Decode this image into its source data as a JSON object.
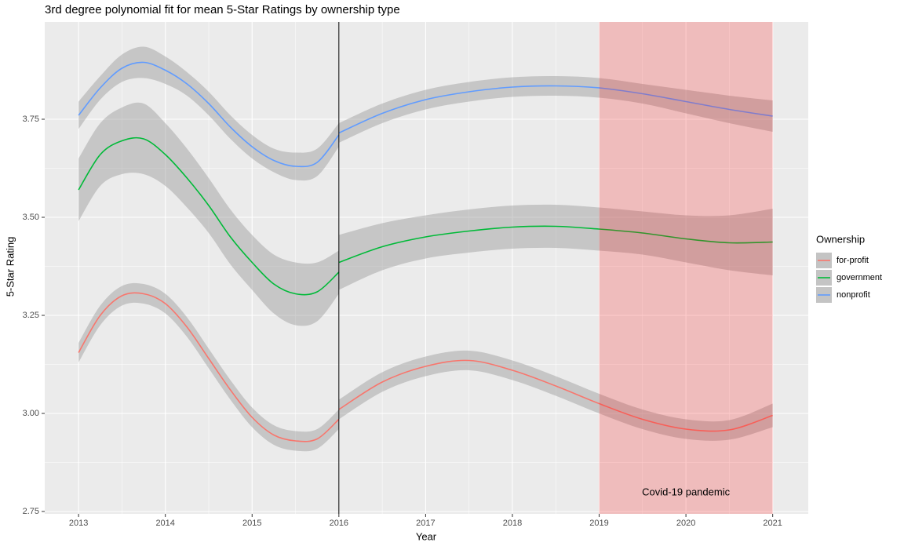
{
  "chart_data": {
    "type": "line",
    "title": "3rd degree polynomial fit for mean 5-Star Ratings by ownership type",
    "x_label": "Year",
    "y_label": "5-Star Rating",
    "legend_title": "Ownership",
    "legend": "right",
    "x": [
      2013,
      2013.25,
      2013.5,
      2013.75,
      2014,
      2014.25,
      2014.5,
      2014.75,
      2015,
      2015.25,
      2015.5,
      2015.75,
      2016,
      null,
      2016,
      2016.5,
      2017,
      2017.5,
      2018,
      2018.5,
      2019,
      2019.5,
      2020,
      2020.5,
      2021
    ],
    "series": [
      {
        "name": "for-profit",
        "color": "#F8766D",
        "values": [
          3.155,
          3.25,
          3.3,
          3.305,
          3.28,
          3.22,
          3.14,
          3.06,
          2.99,
          2.945,
          2.93,
          2.935,
          2.985,
          null,
          3.01,
          3.08,
          3.12,
          3.135,
          3.11,
          3.07,
          3.025,
          2.985,
          2.96,
          2.958,
          2.995
        ],
        "lower": [
          3.13,
          3.225,
          3.275,
          3.28,
          3.255,
          3.195,
          3.115,
          3.035,
          2.965,
          2.92,
          2.905,
          2.91,
          2.96,
          null,
          2.985,
          3.055,
          3.095,
          3.11,
          3.085,
          3.045,
          3.0,
          2.96,
          2.935,
          2.933,
          2.965
        ],
        "upper": [
          3.18,
          3.275,
          3.325,
          3.33,
          3.305,
          3.245,
          3.165,
          3.085,
          3.015,
          2.97,
          2.955,
          2.96,
          3.01,
          null,
          3.035,
          3.105,
          3.145,
          3.16,
          3.135,
          3.095,
          3.05,
          3.01,
          2.985,
          2.983,
          3.025
        ]
      },
      {
        "name": "government",
        "color": "#00BA38",
        "values": [
          3.57,
          3.66,
          3.695,
          3.7,
          3.66,
          3.6,
          3.53,
          3.45,
          3.385,
          3.33,
          3.305,
          3.31,
          3.36,
          null,
          3.385,
          3.425,
          3.45,
          3.465,
          3.475,
          3.477,
          3.47,
          3.46,
          3.445,
          3.435,
          3.437
        ],
        "lower": [
          3.49,
          3.58,
          3.61,
          3.61,
          3.58,
          3.525,
          3.46,
          3.38,
          3.315,
          3.255,
          3.225,
          3.235,
          3.305,
          null,
          3.315,
          3.365,
          3.395,
          3.41,
          3.42,
          3.422,
          3.415,
          3.405,
          3.385,
          3.365,
          3.352
        ],
        "upper": [
          3.65,
          3.74,
          3.78,
          3.79,
          3.74,
          3.675,
          3.6,
          3.52,
          3.455,
          3.405,
          3.385,
          3.385,
          3.415,
          null,
          3.455,
          3.485,
          3.505,
          3.52,
          3.53,
          3.532,
          3.525,
          3.515,
          3.505,
          3.505,
          3.522
        ]
      },
      {
        "name": "nonprofit",
        "color": "#619CFF",
        "values": [
          3.76,
          3.83,
          3.88,
          3.895,
          3.875,
          3.84,
          3.79,
          3.73,
          3.68,
          3.645,
          3.63,
          3.64,
          3.71,
          null,
          3.715,
          3.765,
          3.8,
          3.82,
          3.832,
          3.835,
          3.83,
          3.815,
          3.795,
          3.775,
          3.758
        ],
        "lower": [
          3.725,
          3.8,
          3.845,
          3.855,
          3.84,
          3.81,
          3.76,
          3.7,
          3.65,
          3.615,
          3.595,
          3.605,
          3.68,
          null,
          3.69,
          3.74,
          3.775,
          3.795,
          3.807,
          3.81,
          3.805,
          3.79,
          3.765,
          3.74,
          3.718
        ],
        "upper": [
          3.795,
          3.86,
          3.915,
          3.935,
          3.91,
          3.87,
          3.82,
          3.76,
          3.71,
          3.675,
          3.665,
          3.675,
          3.74,
          null,
          3.74,
          3.79,
          3.825,
          3.845,
          3.857,
          3.86,
          3.855,
          3.84,
          3.825,
          3.81,
          3.798
        ]
      }
    ],
    "band_color": "#999999",
    "vline": 2016,
    "shade": {
      "x": [
        2019,
        2021
      ],
      "color": "#ff0000",
      "label": "Covid-19 pandemic"
    },
    "xlim": [
      2012.61,
      2021.41
    ],
    "xticks": [
      2013,
      2014,
      2015,
      2016,
      2017,
      2018,
      2019,
      2020,
      2021
    ],
    "ylim": [
      2.744,
      3.998
    ],
    "yticks": [
      2.75,
      {
        "value": 3,
        "label": "3.00"
      },
      3.25,
      {
        "value": 3.5,
        "label": "3.50"
      },
      3.75
    ],
    "grid": true
  }
}
